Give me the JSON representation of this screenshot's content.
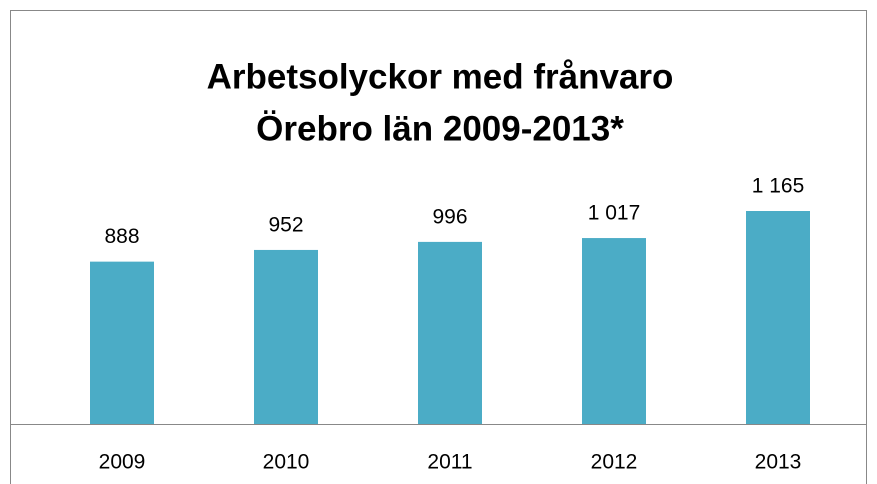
{
  "chart_data": {
    "type": "bar",
    "title": [
      "Arbetsolyckor med frånvaro",
      "Örebro län 2009-2013*"
    ],
    "categories": [
      "2009",
      "2010",
      "2011",
      "2012",
      "2013"
    ],
    "values": [
      888,
      952,
      996,
      1017,
      1165
    ],
    "value_labels": [
      "888",
      "952",
      "996",
      "1 017",
      "1 165"
    ],
    "color": "#4bacc6"
  }
}
